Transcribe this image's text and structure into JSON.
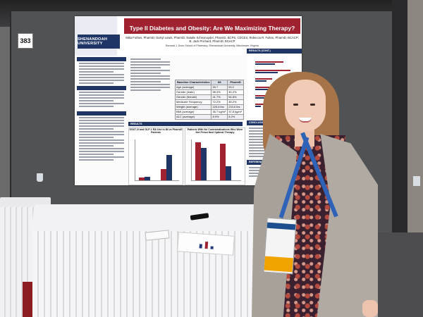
{
  "booth": {
    "number": "383"
  },
  "poster": {
    "logo_text": "SHENANDOAH UNIVERSITY",
    "title": "Type II Diabetes and Obesity: Are We Maximizing Therapy?",
    "authors": "Mika Forbes, PharmD; Darryl Lewis, PharmD; Natalie Schexnayder, PharmD, BCPS, CDCES; Rebecca R. Fulton, PharmD, BCACP; B. Jack Prichard, PharmD, BCACP",
    "affiliation": "Bernard J. Dunn School of Pharmacy, Shenandoah University, Winchester, Virginia",
    "sections": {
      "results": "RESULTS",
      "conclusions": "CONCLUSIONS",
      "references": "REFERENCES"
    },
    "table": {
      "headers": [
        "Baseline Characteristics",
        "IM",
        "PharmD"
      ],
      "rows": [
        [
          "Age (average)",
          "59.7",
          "53.2"
        ],
        [
          "Gender (male)",
          "58.3%",
          "45.2%"
        ],
        [
          "Gender (female)",
          "41.7%",
          "54.8%"
        ],
        [
          "Medicare Frequency",
          "72.2%",
          "46.2%"
        ],
        [
          "Weight (average)",
          "225.8 lbs",
          "233.6 lbs"
        ],
        [
          "BMI (average)",
          "35.7 kg/m²",
          "37.8 kg/m²"
        ],
        [
          "A1C (average)",
          "8.9%",
          "8.2%"
        ]
      ]
    },
    "chart_left_title": "SGLT-2i and GLP-1 RA Use in IM vs PharmD Patients",
    "chart_right_title": "Patients With No Contraindications Who Were Not Prescribed Optimal Therapy",
    "results_title": "RESULTS (CONT.)",
    "colors": {
      "navy": "#1e3566",
      "red": "#a02130"
    }
  },
  "chart_data": [
    {
      "type": "bar",
      "categories": [
        "",
        ""
      ],
      "series": [
        {
          "values": [
            4,
            18
          ]
        },
        {
          "values": [
            6,
            40
          ]
        }
      ]
    },
    {
      "type": "bar",
      "categories": [
        "",
        ""
      ],
      "series": [
        {
          "values": [
            60,
            58
          ]
        },
        {
          "values": [
            52,
            22
          ]
        }
      ]
    }
  ]
}
